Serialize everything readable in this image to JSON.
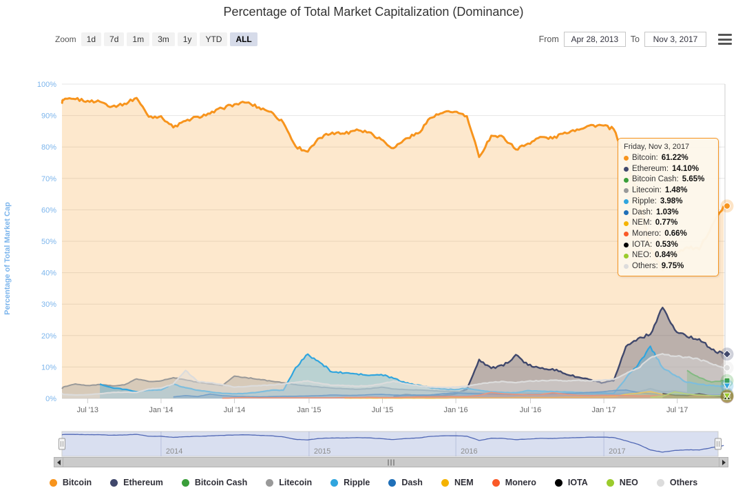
{
  "page_title": "Percentage of Total Market Capitalization (Dominance)",
  "range_selector": {
    "zoom_label": "Zoom",
    "buttons": [
      {
        "label": "1d",
        "selected": false
      },
      {
        "label": "7d",
        "selected": false
      },
      {
        "label": "1m",
        "selected": false
      },
      {
        "label": "3m",
        "selected": false
      },
      {
        "label": "1y",
        "selected": false
      },
      {
        "label": "YTD",
        "selected": false
      },
      {
        "label": "ALL",
        "selected": true
      }
    ],
    "from_label": "From",
    "from_value": "Apr 28, 2013",
    "to_label": "To",
    "to_value": "Nov 3, 2017"
  },
  "colors": {
    "title_text": "#333333",
    "y_axis_label": "#7cb5ec",
    "x_axis_label": "#666666",
    "grid": "#e6e6e6",
    "crosshair": "#cccccc",
    "tooltip_bg": "#fdf7ea",
    "tooltip_border": "#f7941d",
    "navigator_mask": "#667fc4",
    "navigator_line": "#5067b5",
    "navigator_outline": "#cccccc",
    "navigator_year_label": "#8c8c8c",
    "selected_button_bg": "#d6dbe9"
  },
  "tooltip": {
    "header": "Friday, Nov 3, 2017",
    "rows": [
      {
        "label": "Bitcoin",
        "value": "61.22%"
      },
      {
        "label": "Ethereum",
        "value": "14.10%"
      },
      {
        "label": "Bitcoin Cash",
        "value": "5.65%"
      },
      {
        "label": "Litecoin",
        "value": "1.48%"
      },
      {
        "label": "Ripple",
        "value": "3.98%"
      },
      {
        "label": "Dash",
        "value": "1.03%"
      },
      {
        "label": "NEM",
        "value": "0.77%"
      },
      {
        "label": "Monero",
        "value": "0.66%"
      },
      {
        "label": "IOTA",
        "value": "0.53%"
      },
      {
        "label": "NEO",
        "value": "0.84%"
      },
      {
        "label": "Others",
        "value": "9.75%"
      }
    ]
  },
  "chart_data": {
    "type": "area",
    "title": "Percentage of Total Market Capitalization (Dominance)",
    "ylabel": "Percentage of Total Market Cap",
    "xlabel": "",
    "ylim": [
      0,
      100
    ],
    "grid": true,
    "legend_position": "bottom",
    "x_range": [
      "Apr 28, 2013",
      "Nov 3, 2017"
    ],
    "y_axis": {
      "title": "Percentage of Total Market Cap",
      "ticks": [
        "0%",
        "10%",
        "20%",
        "30%",
        "40%",
        "50%",
        "60%",
        "70%",
        "80%",
        "90%",
        "100%"
      ]
    },
    "x_axis": {
      "ticks": [
        {
          "label": "Jul '13",
          "m": 2.1
        },
        {
          "label": "Jan '14",
          "m": 8.1
        },
        {
          "label": "Jul '14",
          "m": 14.1
        },
        {
          "label": "Jan '15",
          "m": 20.2
        },
        {
          "label": "Jul '15",
          "m": 26.2
        },
        {
          "label": "Jan '16",
          "m": 32.2
        },
        {
          "label": "Jul '16",
          "m": 38.3
        },
        {
          "label": "Jan '17",
          "m": 44.3
        },
        {
          "label": "Jul '17",
          "m": 50.3
        }
      ]
    },
    "navigator": {
      "series": "Bitcoin",
      "years": [
        {
          "label": "2014",
          "m": 8.1
        },
        {
          "label": "2015",
          "m": 20.2
        },
        {
          "label": "2016",
          "m": 32.2
        },
        {
          "label": "2017",
          "m": 44.3
        }
      ]
    },
    "categories": [
      "2013-04",
      "2013-05",
      "2013-06",
      "2013-07",
      "2013-08",
      "2013-09",
      "2013-10",
      "2013-11",
      "2013-12",
      "2014-01",
      "2014-02",
      "2014-03",
      "2014-04",
      "2014-05",
      "2014-06",
      "2014-07",
      "2014-08",
      "2014-09",
      "2014-10",
      "2014-11",
      "2014-12",
      "2015-01",
      "2015-02",
      "2015-03",
      "2015-04",
      "2015-05",
      "2015-06",
      "2015-07",
      "2015-08",
      "2015-09",
      "2015-10",
      "2015-11",
      "2015-12",
      "2016-01",
      "2016-02",
      "2016-03",
      "2016-04",
      "2016-05",
      "2016-06",
      "2016-07",
      "2016-08",
      "2016-09",
      "2016-10",
      "2016-11",
      "2016-12",
      "2017-01",
      "2017-02",
      "2017-03",
      "2017-04",
      "2017-05",
      "2017-06",
      "2017-07",
      "2017-08",
      "2017-09",
      "2017-10",
      "2017-11"
    ],
    "series": [
      {
        "name": "Bitcoin",
        "color": "#f7941d",
        "marker": "circle",
        "line_width": 3,
        "fill_opacity": 0.22,
        "jitter": 1.0,
        "values": [
          94.3,
          94.9,
          95.2,
          94.7,
          94.4,
          92.9,
          93.8,
          95.6,
          89.6,
          89.8,
          86.2,
          88.3,
          89.6,
          90.6,
          92.3,
          93.6,
          94.1,
          92.6,
          91.2,
          87.7,
          80.2,
          78.5,
          82.9,
          84.6,
          84.2,
          85.6,
          84.7,
          82.4,
          79.6,
          82.7,
          84.3,
          89.2,
          90.8,
          91.2,
          89.8,
          76.8,
          83.6,
          83.1,
          79.2,
          81.1,
          83.2,
          82.7,
          84.6,
          85.6,
          86.8,
          86.9,
          85.7,
          75.9,
          64.8,
          47.6,
          40.8,
          46.2,
          48.1,
          47.4,
          54.8,
          61.22
        ]
      },
      {
        "name": "Ethereum",
        "color": "#40486c",
        "marker": "diamond",
        "line_width": 2.4,
        "fill_opacity": 0.35,
        "jitter": 0.9,
        "values": [
          null,
          null,
          null,
          null,
          null,
          null,
          null,
          null,
          null,
          null,
          null,
          null,
          null,
          null,
          null,
          null,
          null,
          null,
          null,
          null,
          null,
          null,
          null,
          null,
          null,
          null,
          null,
          null,
          0.6,
          1.2,
          0.9,
          1.0,
          0.9,
          1.4,
          2.9,
          12.4,
          9.6,
          10.4,
          13.9,
          10.6,
          9.6,
          9.4,
          7.9,
          6.8,
          6.0,
          4.9,
          5.6,
          16.5,
          19.1,
          20.4,
          28.9,
          21.8,
          19.6,
          18.9,
          15.6,
          14.1
        ]
      },
      {
        "name": "Bitcoin Cash",
        "color": "#3a9e3a",
        "marker": "square",
        "line_width": 2,
        "fill_opacity": 0.4,
        "jitter": 0.5,
        "values": [
          null,
          null,
          null,
          null,
          null,
          null,
          null,
          null,
          null,
          null,
          null,
          null,
          null,
          null,
          null,
          null,
          null,
          null,
          null,
          null,
          null,
          null,
          null,
          null,
          null,
          null,
          null,
          null,
          null,
          null,
          null,
          null,
          null,
          null,
          null,
          null,
          null,
          null,
          null,
          null,
          null,
          null,
          null,
          null,
          null,
          null,
          null,
          null,
          null,
          null,
          null,
          null,
          8.9,
          6.6,
          5.2,
          5.65
        ]
      },
      {
        "name": "Litecoin",
        "color": "#999999",
        "marker": "triangle",
        "line_width": 2,
        "fill_opacity": 0.38,
        "jitter": 0.45,
        "values": [
          3.1,
          3.6,
          4.6,
          4.1,
          4.4,
          4.0,
          4.3,
          6.2,
          5.4,
          5.6,
          6.6,
          5.9,
          5.1,
          4.6,
          4.1,
          7.1,
          6.6,
          6.1,
          5.5,
          5.0,
          4.4,
          4.0,
          3.6,
          3.3,
          3.1,
          2.9,
          3.1,
          3.6,
          3.0,
          2.8,
          2.7,
          2.5,
          2.3,
          2.2,
          2.0,
          1.8,
          1.8,
          1.7,
          1.6,
          1.8,
          1.7,
          1.6,
          1.5,
          1.5,
          1.4,
          1.4,
          1.3,
          1.6,
          2.1,
          3.1,
          2.1,
          2.4,
          1.8,
          1.5,
          1.4,
          1.48
        ]
      },
      {
        "name": "Ripple",
        "color": "#30a5de",
        "marker": "triangle-down",
        "line_width": 2.2,
        "fill_opacity": 0.32,
        "jitter": 0.85,
        "values": [
          null,
          null,
          null,
          null,
          4.6,
          3.4,
          2.9,
          2.1,
          2.6,
          2.7,
          4.6,
          3.4,
          2.6,
          2.1,
          1.6,
          1.5,
          1.6,
          2.0,
          2.6,
          2.6,
          9.8,
          14.1,
          11.4,
          8.4,
          8.1,
          7.8,
          7.3,
          7.6,
          6.4,
          4.9,
          4.3,
          3.4,
          3.0,
          2.8,
          3.3,
          2.6,
          2.1,
          1.9,
          1.8,
          2.5,
          2.3,
          2.2,
          2.1,
          1.9,
          1.8,
          1.7,
          1.6,
          6.4,
          10.8,
          16.6,
          9.8,
          7.4,
          5.1,
          4.5,
          4.1,
          3.98
        ]
      },
      {
        "name": "Dash",
        "color": "#1f6fb8",
        "marker": "circle",
        "line_width": 1.6,
        "fill_opacity": 0.35,
        "jitter": 0.25,
        "values": [
          null,
          null,
          null,
          null,
          null,
          null,
          null,
          null,
          null,
          null,
          0.5,
          0.9,
          0.6,
          1.4,
          0.9,
          0.7,
          0.6,
          0.5,
          0.6,
          0.7,
          0.7,
          0.8,
          0.9,
          1.1,
          1.0,
          1.0,
          1.2,
          1.3,
          1.1,
          1.0,
          1.1,
          1.1,
          1.5,
          1.8,
          1.6,
          1.5,
          1.4,
          1.3,
          1.2,
          1.3,
          1.3,
          1.5,
          1.6,
          1.7,
          1.9,
          2.1,
          2.5,
          2.7,
          1.9,
          1.5,
          1.3,
          1.2,
          1.1,
          1.0,
          1.0,
          1.03
        ]
      },
      {
        "name": "NEM",
        "color": "#f5b300",
        "marker": "diamond",
        "line_width": 1.6,
        "fill_opacity": 0.4,
        "jitter": 0.2,
        "values": [
          null,
          null,
          null,
          null,
          null,
          null,
          null,
          null,
          null,
          null,
          null,
          null,
          null,
          null,
          null,
          null,
          null,
          null,
          null,
          null,
          null,
          null,
          null,
          null,
          0.1,
          0.1,
          0.1,
          0.1,
          0.1,
          0.1,
          0.1,
          0.1,
          0.1,
          0.2,
          0.2,
          0.2,
          0.2,
          0.2,
          0.3,
          0.3,
          0.3,
          0.3,
          0.4,
          0.4,
          0.4,
          0.5,
          0.6,
          1.3,
          1.7,
          2.2,
          1.3,
          1.0,
          0.9,
          0.8,
          0.7,
          0.77
        ]
      },
      {
        "name": "Monero",
        "color": "#fa5a28",
        "marker": "square",
        "line_width": 1.6,
        "fill_opacity": 0.35,
        "jitter": 0.2,
        "values": [
          null,
          null,
          null,
          null,
          null,
          null,
          null,
          null,
          null,
          null,
          null,
          null,
          null,
          null,
          0.1,
          0.2,
          0.3,
          0.2,
          0.2,
          0.2,
          0.2,
          0.2,
          0.2,
          0.2,
          0.3,
          0.3,
          0.4,
          0.3,
          0.3,
          0.4,
          0.5,
          0.5,
          0.6,
          0.6,
          0.6,
          1.0,
          1.9,
          1.5,
          1.3,
          1.2,
          1.2,
          1.8,
          1.4,
          1.0,
          0.9,
          1.0,
          1.0,
          0.9,
          0.8,
          0.8,
          0.8,
          0.9,
          0.8,
          0.7,
          0.7,
          0.66
        ]
      },
      {
        "name": "IOTA",
        "color": "#000000",
        "marker": "triangle",
        "line_width": 1.6,
        "fill_opacity": 0.3,
        "jitter": 0.2,
        "values": [
          null,
          null,
          null,
          null,
          null,
          null,
          null,
          null,
          null,
          null,
          null,
          null,
          null,
          null,
          null,
          null,
          null,
          null,
          null,
          null,
          null,
          null,
          null,
          null,
          null,
          null,
          null,
          null,
          null,
          null,
          null,
          null,
          null,
          null,
          null,
          null,
          null,
          null,
          null,
          null,
          null,
          null,
          null,
          null,
          null,
          null,
          null,
          null,
          null,
          null,
          1.6,
          1.0,
          0.9,
          1.5,
          0.8,
          0.53
        ]
      },
      {
        "name": "NEO",
        "color": "#9bcb2d",
        "marker": "triangle-down",
        "line_width": 1.6,
        "fill_opacity": 0.4,
        "jitter": 0.25,
        "values": [
          null,
          null,
          null,
          null,
          null,
          null,
          null,
          null,
          null,
          null,
          null,
          null,
          null,
          null,
          null,
          null,
          null,
          null,
          null,
          null,
          null,
          null,
          null,
          null,
          null,
          null,
          null,
          null,
          null,
          null,
          null,
          null,
          null,
          null,
          null,
          null,
          null,
          null,
          null,
          null,
          null,
          null,
          null,
          null,
          null,
          null,
          null,
          null,
          null,
          0.4,
          0.7,
          2.1,
          1.4,
          1.1,
          0.9,
          0.84
        ]
      },
      {
        "name": "Others",
        "color": "#dcdcdc",
        "marker": "circle",
        "line_width": 2.2,
        "fill_opacity": 0.45,
        "jitter": 0.55,
        "values": [
          1.6,
          1.3,
          1.1,
          1.2,
          1.5,
          1.9,
          2.0,
          1.9,
          3.0,
          3.3,
          4.6,
          8.9,
          5.4,
          5.0,
          4.4,
          3.6,
          3.8,
          4.1,
          4.3,
          4.6,
          5.1,
          5.6,
          4.8,
          4.2,
          4.1,
          3.9,
          4.1,
          4.6,
          5.5,
          4.6,
          4.1,
          3.6,
          3.5,
          3.6,
          3.9,
          4.6,
          5.1,
          5.4,
          5.0,
          5.5,
          5.6,
          5.8,
          5.6,
          5.8,
          5.6,
          5.7,
          6.1,
          7.9,
          9.6,
          12.9,
          14.2,
          13.4,
          13.1,
          12.4,
          11.0,
          9.75
        ]
      }
    ]
  }
}
